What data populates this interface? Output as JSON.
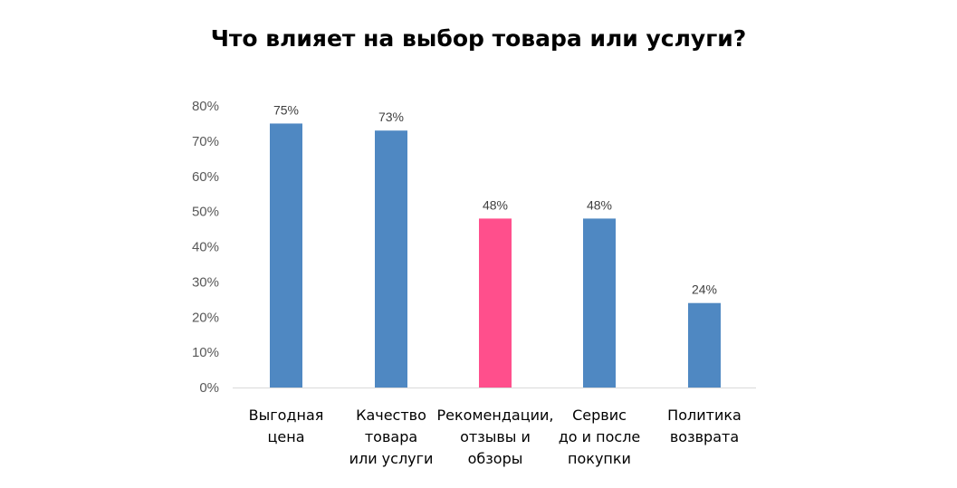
{
  "chart_data": {
    "type": "bar",
    "title": "Что влияет на выбор товара или услуги?",
    "xlabel": "",
    "ylabel": "",
    "categories": [
      [
        "Выгодная",
        "цена"
      ],
      [
        "Качество",
        "товара",
        "или услуги"
      ],
      [
        "Рекомендации,",
        "отзывы и",
        "обзоры"
      ],
      [
        "Сервис",
        "до и после",
        "покупки"
      ],
      [
        "Политика",
        "возврата"
      ]
    ],
    "values": [
      75,
      73,
      48,
      48,
      24
    ],
    "data_labels": [
      "75%",
      "73%",
      "48%",
      "48%",
      "24%"
    ],
    "ylim": [
      0,
      80
    ],
    "yticks": [
      0,
      10,
      20,
      30,
      40,
      50,
      60,
      70,
      80
    ],
    "ytick_labels": [
      "0%",
      "10%",
      "20%",
      "30%",
      "40%",
      "50%",
      "60%",
      "70%",
      "80%"
    ],
    "grid": false,
    "legend": "none",
    "bar_colors": [
      "#4F88C2",
      "#4F88C2",
      "#FF4F8C",
      "#4F88C2",
      "#4F88C2"
    ],
    "axis_color": "#D9D9D9"
  }
}
